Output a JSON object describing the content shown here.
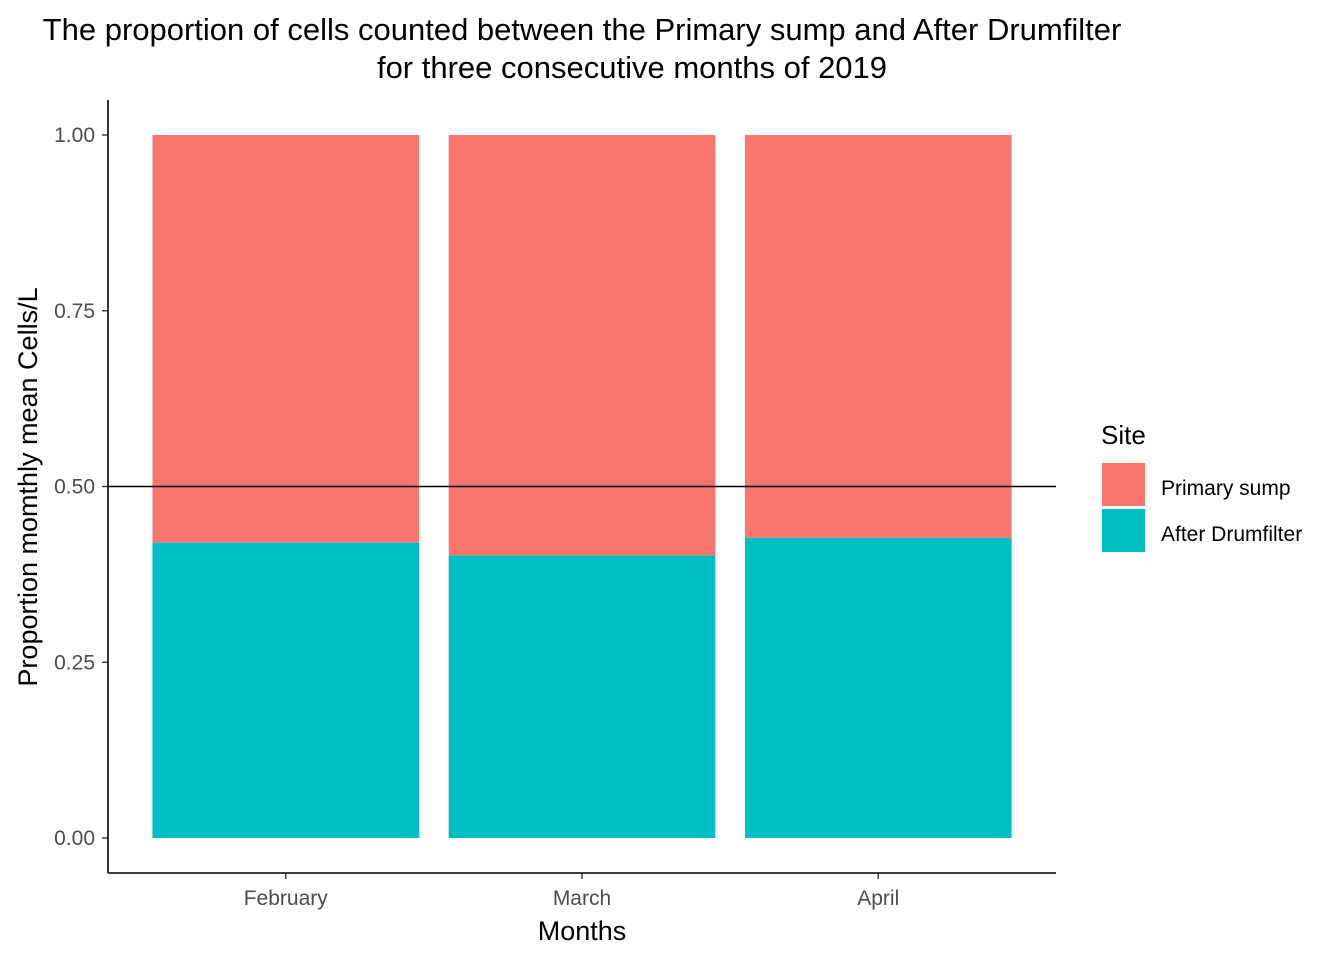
{
  "chart_data": {
    "type": "bar",
    "stacked": true,
    "title_lines": [
      "The proportion of cells counted between the Primary sump and After Drumfilter",
      "for three consecutive months of 2019"
    ],
    "xlabel": "Months",
    "ylabel": "Proportion momthly mean Cells/L",
    "categories": [
      "February",
      "March",
      "April"
    ],
    "ylim": [
      0,
      1
    ],
    "yticks": [
      "0.00",
      "0.25",
      "0.50",
      "0.75",
      "1.00"
    ],
    "series": [
      {
        "name": "After Drumfilter",
        "color": "#00BFC4",
        "values": [
          0.42,
          0.402,
          0.427
        ]
      },
      {
        "name": "Primary sump",
        "color": "#F8766D",
        "values": [
          0.58,
          0.598,
          0.573
        ]
      }
    ],
    "reference_line": {
      "y": 0.5,
      "color": "#000000"
    },
    "legend": {
      "title": "Site",
      "placement": "right",
      "entries": [
        {
          "label": "Primary sump",
          "color": "#F8766D"
        },
        {
          "label": "After Drumfilter",
          "color": "#00BFC4"
        }
      ]
    },
    "grid": false
  }
}
